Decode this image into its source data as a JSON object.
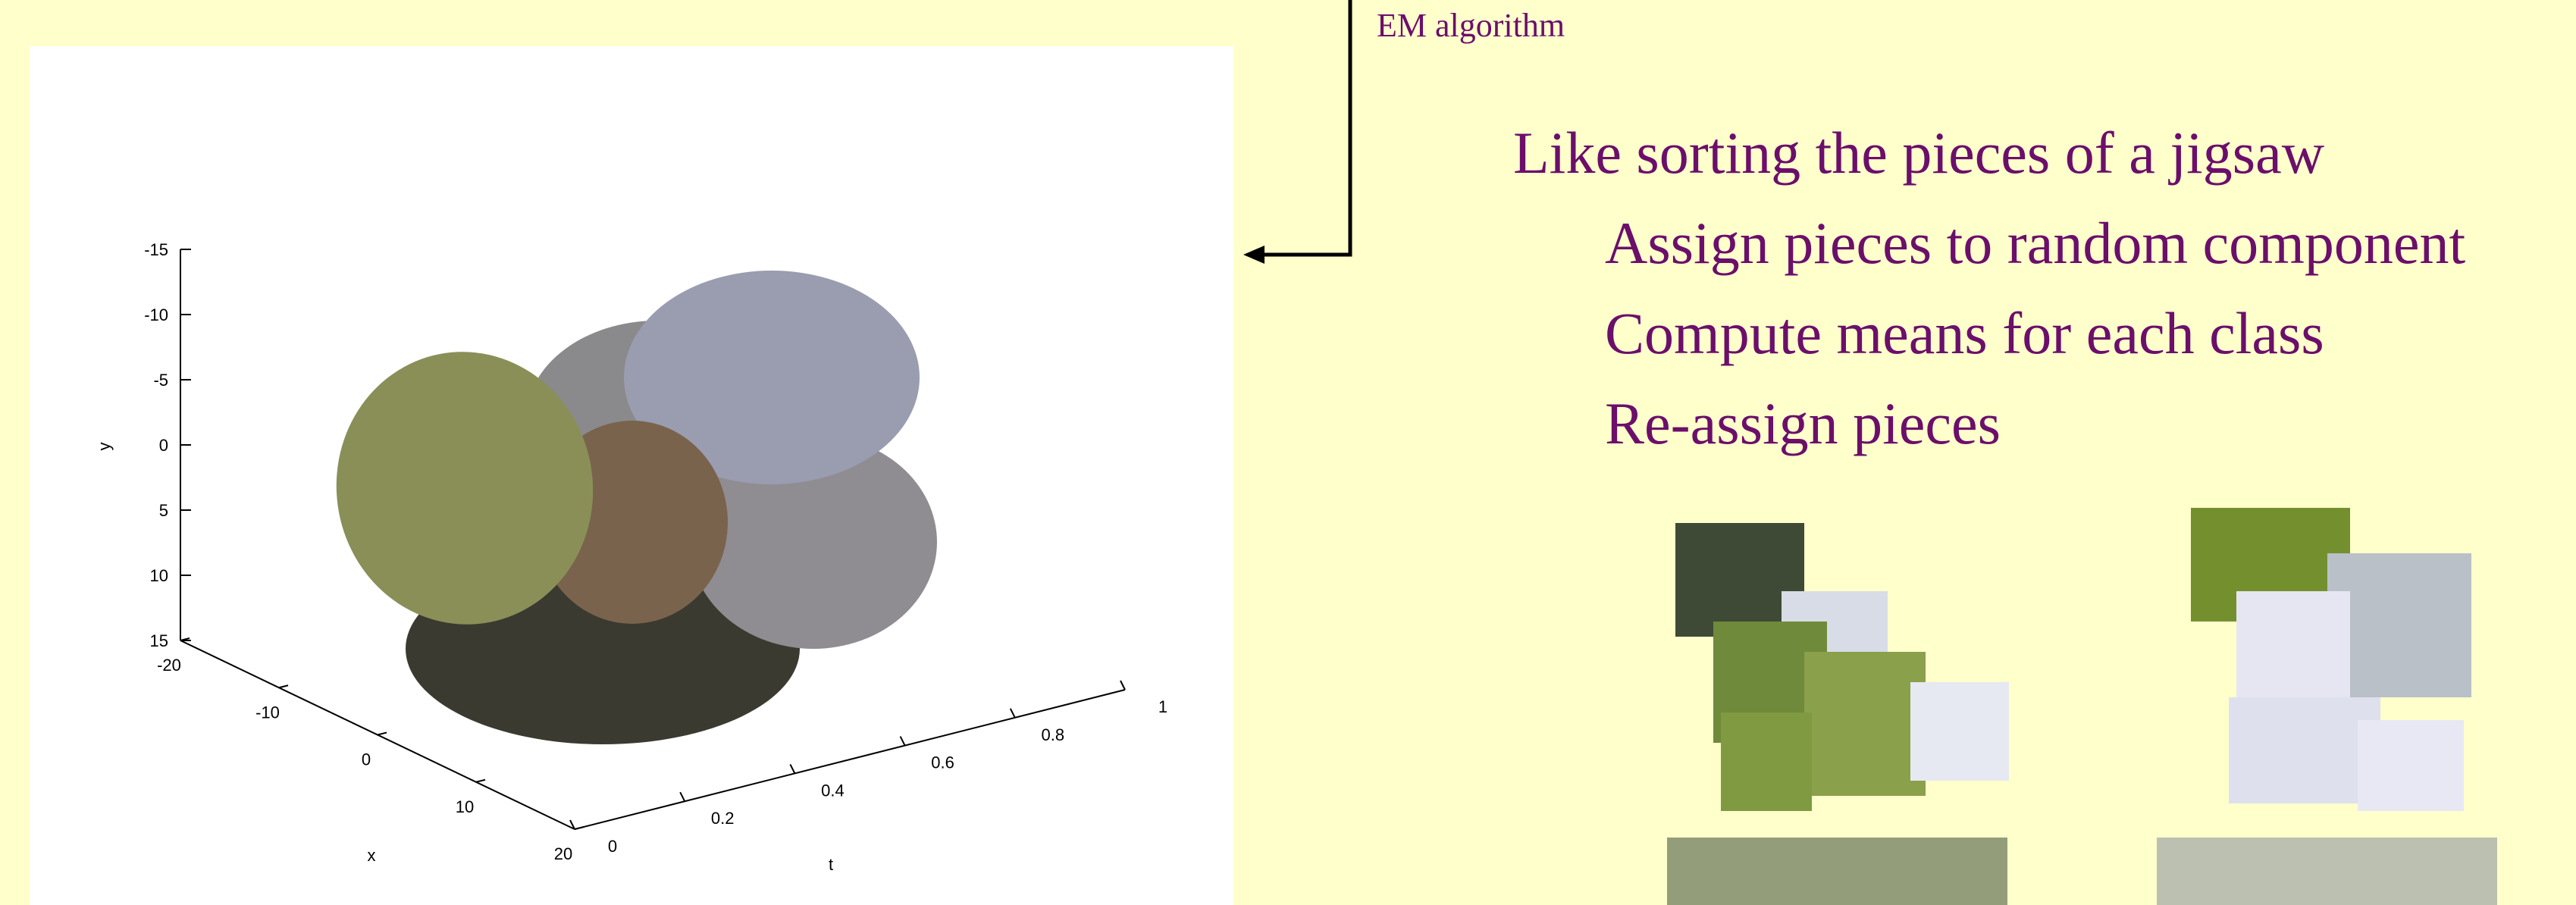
{
  "annotation": "EM algorithm",
  "bullets": {
    "heading": "Like sorting the pieces of a jigsaw",
    "items": [
      "Assign pieces to random component",
      "Compute means for each class",
      "Re-assign pieces"
    ]
  },
  "plot": {
    "x_label": "x",
    "y_label": "y",
    "t_label": "t",
    "y_ticks": [
      "-15",
      "-10",
      "-5",
      "0",
      "5",
      "10",
      "15"
    ],
    "x_ticks": [
      "-20",
      "-10",
      "0",
      "10",
      "20"
    ],
    "t_ticks": [
      "0",
      "0.2",
      "0.4",
      "0.6",
      "0.8",
      "1"
    ]
  }
}
